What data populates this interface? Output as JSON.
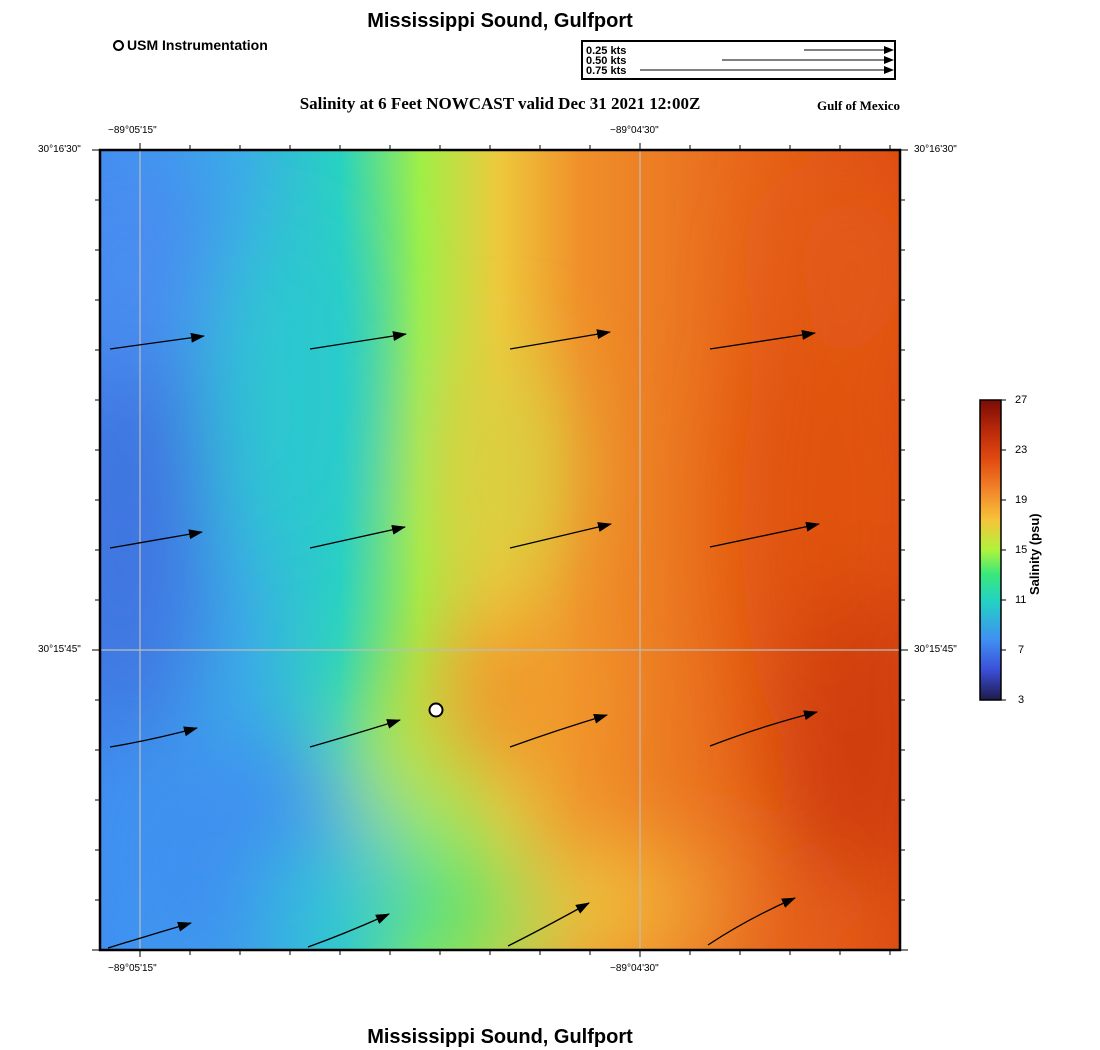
{
  "header": {
    "title_top": "Mississippi Sound, Gulfport",
    "title_bottom": "Mississippi Sound, Gulfport",
    "subtitle": "Salinity at 6 Feet NOWCAST valid Dec 31 2021 12:00Z",
    "region": "Gulf of Mexico"
  },
  "legend": {
    "station_label": "USM Instrumentation",
    "vector_scale": [
      "0.25 kts",
      "0.50 kts",
      "0.75 kts"
    ]
  },
  "map": {
    "lon_ticks": [
      "−89°05'15\"",
      "−89°04'30\""
    ],
    "lat_ticks": [
      "30°16'30\"",
      "30°15'45\""
    ],
    "station": {
      "name": "USM Instrumentation",
      "marker": "open-circle"
    }
  },
  "colorbar": {
    "title": "Salinity (psu)",
    "ticks": [
      "27",
      "23",
      "19",
      "15",
      "11",
      "7",
      "3"
    ],
    "colors": [
      "#1f1a4a",
      "#3b4fd8",
      "#3f8ff2",
      "#23d2c4",
      "#3ae87a",
      "#aff33c",
      "#f6c43a",
      "#f2852a",
      "#e24b10",
      "#b8280a",
      "#7a0c05"
    ]
  }
}
